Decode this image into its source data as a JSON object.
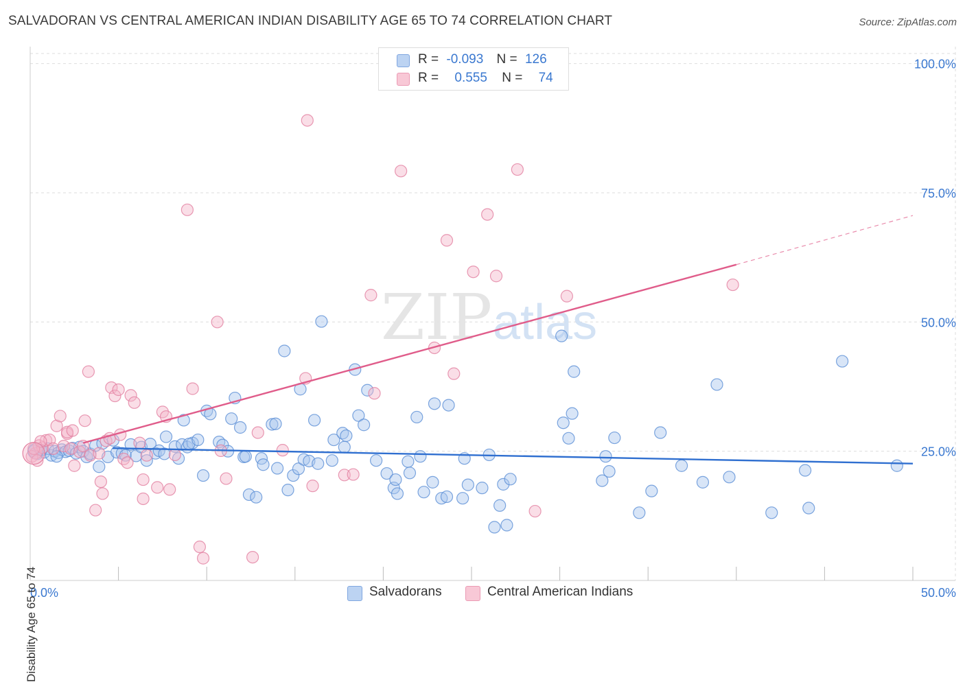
{
  "title": "SALVADORAN VS CENTRAL AMERICAN INDIAN DISABILITY AGE 65 TO 74 CORRELATION CHART",
  "source": "Source: ZipAtlas.com",
  "watermark": {
    "zip": "ZIP",
    "atlas": "atlas"
  },
  "colors": {
    "blue_fill": "#a9c6ee",
    "blue_stroke": "#5b8fd6",
    "blue_line": "#2f6fd0",
    "pink_fill": "#f5b6c9",
    "pink_stroke": "#e27fa0",
    "pink_line": "#e05c8a",
    "grid": "#dddddd",
    "axis_label": "#3a78d0"
  },
  "legend": {
    "rows": [
      {
        "r_label": "R =",
        "r_value": "-0.093",
        "n_label": "N =",
        "n_value": "126"
      },
      {
        "r_label": "R =",
        "r_value": "0.555",
        "n_label": "N =",
        "n_value": "74"
      }
    ]
  },
  "bottom_legend": [
    "Salvadorans",
    "Central American Indians"
  ],
  "chart_data": {
    "type": "scatter",
    "title": "SALVADORAN VS CENTRAL AMERICAN INDIAN DISABILITY AGE 65 TO 74 CORRELATION CHART",
    "xlabel": "",
    "ylabel": "Disability Age 65 to 74",
    "xlim": [
      0,
      50
    ],
    "ylim": [
      0,
      103
    ],
    "x_tick_labels": [
      "0.0%",
      "50.0%"
    ],
    "y_ticks": [
      25,
      50,
      75,
      100
    ],
    "y_tick_labels": [
      "25.0%",
      "50.0%",
      "75.0%",
      "100.0%"
    ],
    "grid": true,
    "legend_placement": "top-center",
    "series": [
      {
        "name": "Salvadorans",
        "r": -0.093,
        "n": 126,
        "trend": {
          "x": [
            0,
            50
          ],
          "y": [
            25.9,
            22.6
          ],
          "dashed_from": null
        },
        "points": [
          [
            0.2,
            25.0
          ],
          [
            0.4,
            24.5
          ],
          [
            0.6,
            25.2
          ],
          [
            0.8,
            24.8
          ],
          [
            1.0,
            25.5
          ],
          [
            1.2,
            24.2
          ],
          [
            1.4,
            25.0
          ],
          [
            1.6,
            24.7
          ],
          [
            1.8,
            25.3
          ],
          [
            2.0,
            24.9
          ],
          [
            2.2,
            25.1
          ],
          [
            2.4,
            25.6
          ],
          [
            2.6,
            24.6
          ],
          [
            2.8,
            25.8
          ],
          [
            3.0,
            25.0
          ],
          [
            3.2,
            23.9
          ],
          [
            3.4,
            24.5
          ],
          [
            3.7,
            26.1
          ],
          [
            3.9,
            22.0
          ],
          [
            4.1,
            26.5
          ],
          [
            4.4,
            23.9
          ],
          [
            4.7,
            27.1
          ],
          [
            4.9,
            24.8
          ],
          [
            5.2,
            24.6
          ],
          [
            5.4,
            24.2
          ],
          [
            5.7,
            26.3
          ],
          [
            6.0,
            24.1
          ],
          [
            6.3,
            25.8
          ],
          [
            6.6,
            23.2
          ],
          [
            6.8,
            26.4
          ],
          [
            7.1,
            24.6
          ],
          [
            7.3,
            25.1
          ],
          [
            7.6,
            24.5
          ],
          [
            7.7,
            27.8
          ],
          [
            8.2,
            25.9
          ],
          [
            8.4,
            23.6
          ],
          [
            8.6,
            26.3
          ],
          [
            8.9,
            25.8
          ],
          [
            8.7,
            31.0
          ],
          [
            9.2,
            26.6
          ],
          [
            9.0,
            26.4
          ],
          [
            9.5,
            27.2
          ],
          [
            9.8,
            20.3
          ],
          [
            10.0,
            32.8
          ],
          [
            10.2,
            32.2
          ],
          [
            10.7,
            26.8
          ],
          [
            10.9,
            26.2
          ],
          [
            11.2,
            25.0
          ],
          [
            11.4,
            31.3
          ],
          [
            11.6,
            35.3
          ],
          [
            11.9,
            29.6
          ],
          [
            12.1,
            23.9
          ],
          [
            12.4,
            16.6
          ],
          [
            12.2,
            24.0
          ],
          [
            12.8,
            16.1
          ],
          [
            13.1,
            23.6
          ],
          [
            13.2,
            22.4
          ],
          [
            13.7,
            30.2
          ],
          [
            13.9,
            30.3
          ],
          [
            14.0,
            21.7
          ],
          [
            14.4,
            44.4
          ],
          [
            14.6,
            17.5
          ],
          [
            14.9,
            20.3
          ],
          [
            15.2,
            21.6
          ],
          [
            15.3,
            37.0
          ],
          [
            15.5,
            23.4
          ],
          [
            15.8,
            23.1
          ],
          [
            16.1,
            31.0
          ],
          [
            16.3,
            22.6
          ],
          [
            16.5,
            50.1
          ],
          [
            17.1,
            23.2
          ],
          [
            17.2,
            27.2
          ],
          [
            17.7,
            28.5
          ],
          [
            17.8,
            25.8
          ],
          [
            17.9,
            28.0
          ],
          [
            18.4,
            40.8
          ],
          [
            18.6,
            31.9
          ],
          [
            18.9,
            30.1
          ],
          [
            19.1,
            36.8
          ],
          [
            19.6,
            23.2
          ],
          [
            20.2,
            20.7
          ],
          [
            20.6,
            17.9
          ],
          [
            20.8,
            16.8
          ],
          [
            20.7,
            19.5
          ],
          [
            21.4,
            23.0
          ],
          [
            21.5,
            20.8
          ],
          [
            21.9,
            31.6
          ],
          [
            22.1,
            24.0
          ],
          [
            22.3,
            17.1
          ],
          [
            22.9,
            34.2
          ],
          [
            22.8,
            19.0
          ],
          [
            23.3,
            15.9
          ],
          [
            23.6,
            16.2
          ],
          [
            23.7,
            33.9
          ],
          [
            24.5,
            15.9
          ],
          [
            24.6,
            23.6
          ],
          [
            24.8,
            18.5
          ],
          [
            25.6,
            17.9
          ],
          [
            26.0,
            24.3
          ],
          [
            26.3,
            10.3
          ],
          [
            26.6,
            14.5
          ],
          [
            27.0,
            10.7
          ],
          [
            26.8,
            18.6
          ],
          [
            27.2,
            19.6
          ],
          [
            30.1,
            47.3
          ],
          [
            30.2,
            30.5
          ],
          [
            30.5,
            27.5
          ],
          [
            30.7,
            32.3
          ],
          [
            30.8,
            40.4
          ],
          [
            32.4,
            19.3
          ],
          [
            32.6,
            24.0
          ],
          [
            32.8,
            21.1
          ],
          [
            33.1,
            27.6
          ],
          [
            34.5,
            13.1
          ],
          [
            35.2,
            17.3
          ],
          [
            35.7,
            28.6
          ],
          [
            36.9,
            22.2
          ],
          [
            38.1,
            19.0
          ],
          [
            38.9,
            37.9
          ],
          [
            39.6,
            20.0
          ],
          [
            42.0,
            13.1
          ],
          [
            43.9,
            21.3
          ],
          [
            44.1,
            14.0
          ],
          [
            46.0,
            42.4
          ],
          [
            49.1,
            22.2
          ],
          [
            1.5,
            24.0
          ]
        ]
      },
      {
        "name": "Central American Indians",
        "r": 0.555,
        "n": 74,
        "trend": {
          "x": [
            0,
            40
          ],
          "y": [
            23.8,
            61.1
          ],
          "dashed_to": [
            50,
            70.6
          ]
        },
        "points": [
          [
            0.3,
            24.6
          ],
          [
            0.5,
            26.1
          ],
          [
            0.7,
            25.7
          ],
          [
            0.9,
            27.1
          ],
          [
            1.1,
            27.2
          ],
          [
            1.3,
            25.5
          ],
          [
            1.5,
            29.9
          ],
          [
            1.7,
            31.8
          ],
          [
            1.9,
            26.0
          ],
          [
            2.1,
            28.4
          ],
          [
            2.3,
            25.5
          ],
          [
            2.1,
            28.7
          ],
          [
            2.4,
            29.0
          ],
          [
            2.5,
            22.2
          ],
          [
            2.8,
            24.9
          ],
          [
            3.0,
            26.0
          ],
          [
            3.1,
            30.9
          ],
          [
            3.3,
            40.4
          ],
          [
            3.4,
            24.2
          ],
          [
            3.7,
            13.6
          ],
          [
            3.9,
            24.6
          ],
          [
            4.0,
            19.1
          ],
          [
            4.1,
            16.8
          ],
          [
            4.3,
            27.0
          ],
          [
            4.5,
            27.5
          ],
          [
            4.6,
            37.3
          ],
          [
            4.8,
            35.7
          ],
          [
            5.0,
            36.9
          ],
          [
            5.1,
            28.2
          ],
          [
            5.3,
            23.5
          ],
          [
            5.5,
            22.8
          ],
          [
            5.7,
            35.8
          ],
          [
            5.9,
            34.4
          ],
          [
            6.2,
            26.6
          ],
          [
            6.4,
            19.5
          ],
          [
            6.4,
            15.8
          ],
          [
            6.6,
            24.2
          ],
          [
            7.2,
            18.0
          ],
          [
            7.5,
            32.6
          ],
          [
            7.7,
            31.7
          ],
          [
            7.9,
            17.6
          ],
          [
            8.2,
            24.3
          ],
          [
            8.9,
            71.7
          ],
          [
            9.2,
            37.1
          ],
          [
            9.6,
            6.5
          ],
          [
            9.8,
            4.3
          ],
          [
            10.6,
            50.0
          ],
          [
            10.8,
            25.1
          ],
          [
            11.1,
            19.7
          ],
          [
            12.6,
            4.5
          ],
          [
            12.9,
            28.6
          ],
          [
            14.3,
            25.2
          ],
          [
            15.6,
            39.1
          ],
          [
            15.7,
            89.0
          ],
          [
            16.0,
            18.3
          ],
          [
            17.8,
            20.4
          ],
          [
            18.3,
            20.5
          ],
          [
            19.3,
            55.2
          ],
          [
            19.5,
            36.2
          ],
          [
            21.0,
            79.2
          ],
          [
            22.9,
            45.0
          ],
          [
            23.6,
            65.8
          ],
          [
            24.0,
            40.0
          ],
          [
            25.1,
            59.7
          ],
          [
            25.9,
            70.8
          ],
          [
            26.4,
            58.9
          ],
          [
            27.6,
            79.5
          ],
          [
            28.6,
            13.4
          ],
          [
            30.4,
            55.0
          ],
          [
            39.8,
            57.2
          ],
          [
            0.1,
            24.0
          ],
          [
            0.2,
            25.5
          ],
          [
            0.4,
            23.2
          ],
          [
            0.6,
            26.9
          ]
        ]
      }
    ]
  }
}
